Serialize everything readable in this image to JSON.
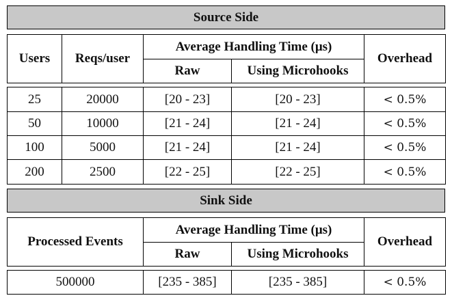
{
  "source": {
    "title": "Source Side",
    "headers": {
      "users": "Users",
      "reqs": "Reqs/user",
      "avg": "Average Handling Time (μs)",
      "raw": "Raw",
      "micro": "Using Microhooks",
      "overhead": "Overhead"
    },
    "rows": [
      {
        "users": "25",
        "reqs": "20000",
        "raw": "[20 - 23]",
        "micro": "[20 - 23]",
        "overhead": "< 0.5%"
      },
      {
        "users": "50",
        "reqs": "10000",
        "raw": "[21 - 24]",
        "micro": "[21 - 24]",
        "overhead": "< 0.5%"
      },
      {
        "users": "100",
        "reqs": "5000",
        "raw": "[21 - 24]",
        "micro": "[21 - 24]",
        "overhead": "< 0.5%"
      },
      {
        "users": "200",
        "reqs": "2500",
        "raw": "[22 - 25]",
        "micro": "[22 - 25]",
        "overhead": "< 0.5%"
      }
    ]
  },
  "sink": {
    "title": "Sink Side",
    "headers": {
      "events": "Processed Events",
      "avg": "Average Handling Time (μs)",
      "raw": "Raw",
      "micro": "Using Microhooks",
      "overhead": "Overhead"
    },
    "row": {
      "events": "500000",
      "raw": "[235 - 385]",
      "micro": "[235 - 385]",
      "overhead": "< 0.5%"
    }
  }
}
